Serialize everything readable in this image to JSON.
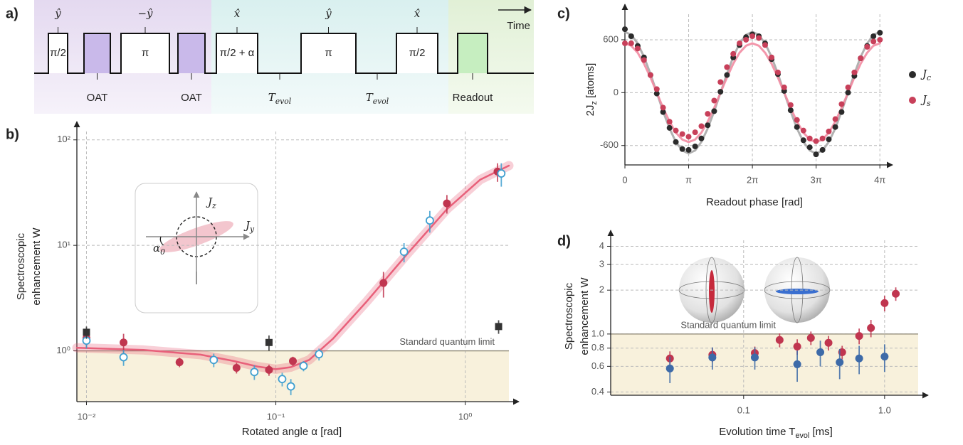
{
  "sequence": {
    "panel": "a)",
    "time_label": "Time",
    "elements": [
      {
        "kind": "pulse",
        "axis": "ŷ",
        "label": "π/2"
      },
      {
        "kind": "oat",
        "label": "OAT"
      },
      {
        "kind": "pulse",
        "axis": "−ŷ",
        "label": "π"
      },
      {
        "kind": "oat",
        "label": "OAT"
      },
      {
        "kind": "pulse",
        "axis": "x̂",
        "label": "π/2 + α"
      },
      {
        "kind": "wait",
        "label": "Tevol"
      },
      {
        "kind": "pulse",
        "axis": "ŷ",
        "label": "π"
      },
      {
        "kind": "wait",
        "label": "Tevol"
      },
      {
        "kind": "pulse",
        "axis": "x̂",
        "label": "π/2"
      },
      {
        "kind": "readout",
        "label": "Readout"
      }
    ]
  },
  "chart_data": [
    {
      "panel": "b)",
      "type": "scatter",
      "xlabel": "Rotated angle α [rad]",
      "ylabel": [
        "Spectroscopic",
        "enhancement W"
      ],
      "xscale": "log",
      "yscale": "log",
      "xlim": [
        0.0089,
        1.7
      ],
      "ylim": [
        0.33,
        120
      ],
      "xticks": [
        {
          "value": 0.01,
          "label": "10⁻²"
        },
        {
          "value": 0.1,
          "label": "10⁻¹"
        },
        {
          "value": 1,
          "label": "10⁰"
        }
      ],
      "yticks": [
        {
          "value": 1,
          "label": "10⁰"
        },
        {
          "value": 10,
          "label": "10¹"
        },
        {
          "value": 100,
          "label": "10²"
        }
      ],
      "grid": true,
      "sql": {
        "value": 1,
        "label": "Standard quantum limit",
        "fill": "#f8f1dc"
      },
      "inset_labels": [
        "Jz",
        "Jy",
        "α0"
      ],
      "fit": {
        "color": "#e8607a",
        "x": [
          0.0089,
          0.02,
          0.04,
          0.06,
          0.08,
          0.1,
          0.12,
          0.15,
          0.2,
          0.3,
          0.5,
          0.8,
          1.2,
          1.7
        ],
        "values": [
          1.07,
          1.02,
          0.92,
          0.8,
          0.71,
          0.67,
          0.7,
          0.82,
          1.3,
          2.9,
          8.5,
          22,
          42,
          57
        ]
      },
      "series": [
        {
          "marker": "filled-circle",
          "color": "#c0354f",
          "x": [
            0.01,
            0.0157,
            0.031,
            0.062,
            0.092,
            0.123,
            0.37,
            0.8,
            1.48
          ],
          "values": [
            1.32,
            1.2,
            0.78,
            0.69,
            0.66,
            0.8,
            4.4,
            25,
            50
          ],
          "errors": [
            0.25,
            0.25,
            0.08,
            0.08,
            0.08,
            0.08,
            1.2,
            5,
            10
          ]
        },
        {
          "marker": "open-circle",
          "color": "#3f9fd0",
          "x": [
            0.01,
            0.0157,
            0.047,
            0.077,
            0.108,
            0.12,
            0.14,
            0.169,
            0.475,
            0.65,
            1.55
          ],
          "values": [
            1.25,
            0.87,
            0.82,
            0.63,
            0.54,
            0.46,
            0.72,
            0.93,
            8.7,
            17.2,
            48
          ],
          "errors": [
            0.2,
            0.15,
            0.12,
            0.1,
            0.08,
            0.08,
            0.08,
            0.12,
            1.8,
            4,
            12
          ]
        },
        {
          "marker": "square",
          "color": "#333333",
          "x": [
            0.01,
            0.092,
            1.5
          ],
          "values": [
            1.5,
            1.2,
            1.7
          ],
          "errors": [
            0.2,
            0.2,
            0.25
          ]
        }
      ]
    },
    {
      "panel": "c)",
      "type": "scatter",
      "xlabel": "Readout phase [rad]",
      "ylabel": [
        "2Jz [atoms]"
      ],
      "xscale": "linear",
      "yscale": "linear",
      "xlim": [
        0,
        12.7
      ],
      "ylim": [
        -820,
        890
      ],
      "xticks": [
        0,
        {
          "value": 3.1416,
          "label": "π"
        },
        {
          "value": 6.2832,
          "label": "2π"
        },
        {
          "value": 9.4248,
          "label": "3π"
        },
        {
          "value": 12.5664,
          "label": "4π"
        }
      ],
      "yticks": [
        -600,
        0,
        600
      ],
      "grid": true,
      "legend": "right",
      "x": [
        0,
        0.31,
        0.63,
        0.94,
        1.26,
        1.57,
        1.88,
        2.2,
        2.51,
        2.83,
        3.14,
        3.46,
        3.77,
        4.08,
        4.4,
        4.71,
        5.03,
        5.34,
        5.65,
        5.97,
        6.28,
        6.6,
        6.91,
        7.23,
        7.54,
        7.85,
        8.17,
        8.48,
        8.8,
        9.11,
        9.42,
        9.74,
        10.05,
        10.37,
        10.68,
        11.0,
        11.31,
        11.62,
        11.94,
        12.25,
        12.57
      ],
      "fits": [
        {
          "color": "#a8a8a8",
          "values": [
            690,
            656,
            558,
            406,
            213,
            0,
            -213,
            -406,
            -558,
            -656,
            -690,
            -656,
            -558,
            -406,
            -213,
            0,
            213,
            406,
            558,
            656,
            690,
            656,
            558,
            406,
            213,
            0,
            -213,
            -406,
            -558,
            -656,
            -690,
            -656,
            -558,
            -406,
            -213,
            0,
            213,
            406,
            558,
            656,
            690
          ]
        },
        {
          "color": "#f28ca2",
          "values": [
            560,
            533,
            453,
            329,
            173,
            0,
            -173,
            -329,
            -453,
            -533,
            -560,
            -533,
            -453,
            -329,
            -173,
            0,
            173,
            329,
            453,
            533,
            560,
            533,
            453,
            329,
            173,
            0,
            -173,
            -329,
            -453,
            -533,
            -560,
            -533,
            -453,
            -329,
            -173,
            0,
            173,
            329,
            453,
            533,
            560
          ]
        }
      ],
      "series": [
        {
          "name": "Jc",
          "marker": "filled-circle",
          "color": "#2b2b2b",
          "values": [
            720,
            640,
            530,
            400,
            200,
            -10,
            -220,
            -400,
            -560,
            -640,
            -650,
            -610,
            -520,
            -370,
            -210,
            10,
            200,
            400,
            540,
            630,
            660,
            640,
            560,
            380,
            210,
            20,
            -200,
            -390,
            -540,
            -620,
            -700,
            -650,
            -530,
            -390,
            -220,
            0,
            190,
            390,
            530,
            640,
            680
          ]
        },
        {
          "name": "Js",
          "marker": "filled-circle",
          "color": "#c8405a",
          "values": [
            560,
            560,
            500,
            370,
            200,
            40,
            -170,
            -330,
            -430,
            -470,
            -500,
            -450,
            -380,
            -240,
            -90,
            120,
            290,
            440,
            560,
            600,
            640,
            620,
            540,
            400,
            230,
            60,
            -140,
            -310,
            -430,
            -520,
            -550,
            -520,
            -440,
            -300,
            -130,
            60,
            230,
            390,
            520,
            580,
            600
          ]
        }
      ]
    },
    {
      "panel": "d)",
      "type": "scatter",
      "xlabel": "Evolution time Tevol [ms]",
      "ylabel": [
        "Spectroscopic",
        "enhancement W"
      ],
      "xscale": "log",
      "yscale": "log",
      "xlim": [
        0.0114,
        1.73
      ],
      "ylim": [
        0.38,
        4.4
      ],
      "xticks": [
        0.1,
        {
          "value": 1,
          "label": "1.0"
        }
      ],
      "yticks": [
        0.4,
        0.6,
        0.8,
        {
          "value": 1,
          "label": "1.0"
        },
        2,
        3,
        4
      ],
      "grid": true,
      "sql": {
        "value": 1,
        "label": "Standard quantum limit",
        "fill": "#f8f1dc"
      },
      "series": [
        {
          "marker": "filled-circle",
          "color": "#c0354f",
          "x": [
            0.03,
            0.06,
            0.12,
            0.18,
            0.24,
            0.3,
            0.4,
            0.5,
            0.66,
            0.8,
            1.0,
            1.2
          ],
          "values": [
            0.68,
            0.72,
            0.74,
            0.91,
            0.82,
            0.94,
            0.87,
            0.75,
            0.97,
            1.1,
            1.63,
            1.89
          ],
          "errors": [
            0.08,
            0.08,
            0.08,
            0.1,
            0.1,
            0.1,
            0.1,
            0.08,
            0.12,
            0.15,
            0.2,
            0.2
          ]
        },
        {
          "marker": "filled-circle",
          "color": "#3d6aa8",
          "x": [
            0.03,
            0.06,
            0.12,
            0.24,
            0.35,
            0.48,
            0.66,
            1.0
          ],
          "values": [
            0.58,
            0.69,
            0.69,
            0.62,
            0.75,
            0.64,
            0.68,
            0.7
          ],
          "errors": [
            0.12,
            0.12,
            0.12,
            0.15,
            0.15,
            0.15,
            0.15,
            0.15
          ]
        }
      ]
    }
  ]
}
